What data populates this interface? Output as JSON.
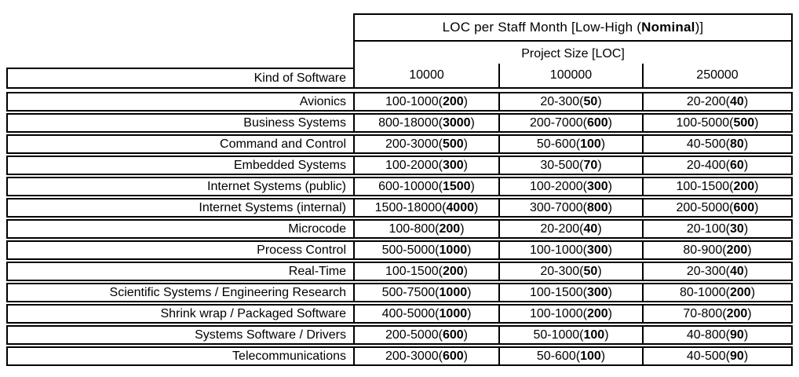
{
  "header": {
    "title_prefix": "LOC per Staff Month [Low-High (",
    "title_bold": "Nominal",
    "title_suffix": ")]",
    "subtitle": "Project Size [LOC]",
    "row_header": "Kind of Software",
    "sizes": [
      "10000",
      "100000",
      "250000"
    ]
  },
  "rows": [
    {
      "kind": "Avionics",
      "cells": [
        {
          "range": "100-1000",
          "nominal": "200"
        },
        {
          "range": "20-300",
          "nominal": "50"
        },
        {
          "range": "20-200",
          "nominal": "40"
        }
      ]
    },
    {
      "kind": "Business Systems",
      "cells": [
        {
          "range": "800-18000",
          "nominal": "3000"
        },
        {
          "range": "200-7000",
          "nominal": "600"
        },
        {
          "range": "100-5000",
          "nominal": "500"
        }
      ]
    },
    {
      "kind": "Command and Control",
      "cells": [
        {
          "range": "200-3000",
          "nominal": "500"
        },
        {
          "range": "50-600",
          "nominal": "100"
        },
        {
          "range": "40-500",
          "nominal": "80"
        }
      ]
    },
    {
      "kind": "Embedded Systems",
      "cells": [
        {
          "range": "100-2000",
          "nominal": "300"
        },
        {
          "range": "30-500",
          "nominal": "70"
        },
        {
          "range": "20-400",
          "nominal": "60"
        }
      ]
    },
    {
      "kind": "Internet Systems (public)",
      "cells": [
        {
          "range": "600-10000",
          "nominal": "1500"
        },
        {
          "range": "100-2000",
          "nominal": "300"
        },
        {
          "range": "100-1500",
          "nominal": "200"
        }
      ]
    },
    {
      "kind": "Internet Systems (internal)",
      "cells": [
        {
          "range": "1500-18000",
          "nominal": "4000"
        },
        {
          "range": "300-7000",
          "nominal": "800"
        },
        {
          "range": "200-5000",
          "nominal": "600"
        }
      ]
    },
    {
      "kind": "Microcode",
      "cells": [
        {
          "range": "100-800",
          "nominal": "200"
        },
        {
          "range": "20-200",
          "nominal": "40"
        },
        {
          "range": "20-100",
          "nominal": "30"
        }
      ]
    },
    {
      "kind": "Process Control",
      "cells": [
        {
          "range": "500-5000",
          "nominal": "1000"
        },
        {
          "range": "100-1000",
          "nominal": "300"
        },
        {
          "range": "80-900",
          "nominal": "200"
        }
      ]
    },
    {
      "kind": "Real-Time",
      "cells": [
        {
          "range": "100-1500",
          "nominal": "200"
        },
        {
          "range": "20-300",
          "nominal": "50"
        },
        {
          "range": "20-300",
          "nominal": "40"
        }
      ]
    },
    {
      "kind": "Scientific Systems / Engineering Research",
      "cells": [
        {
          "range": "500-7500",
          "nominal": "1000"
        },
        {
          "range": "100-1500",
          "nominal": "300"
        },
        {
          "range": "80-1000",
          "nominal": "200"
        }
      ]
    },
    {
      "kind": "Shrink wrap / Packaged Software",
      "cells": [
        {
          "range": "400-5000",
          "nominal": "1000"
        },
        {
          "range": "100-1000",
          "nominal": "200"
        },
        {
          "range": "70-800",
          "nominal": "200"
        }
      ]
    },
    {
      "kind": "Systems Software / Drivers",
      "cells": [
        {
          "range": "200-5000",
          "nominal": "600"
        },
        {
          "range": "50-1000",
          "nominal": "100"
        },
        {
          "range": "40-800",
          "nominal": "90"
        }
      ]
    },
    {
      "kind": "Telecommunications",
      "cells": [
        {
          "range": "200-3000",
          "nominal": "600"
        },
        {
          "range": "50-600",
          "nominal": "100"
        },
        {
          "range": "40-500",
          "nominal": "90"
        }
      ]
    }
  ],
  "colors": {
    "border": "#000000",
    "background": "#ffffff",
    "text": "#000000"
  }
}
